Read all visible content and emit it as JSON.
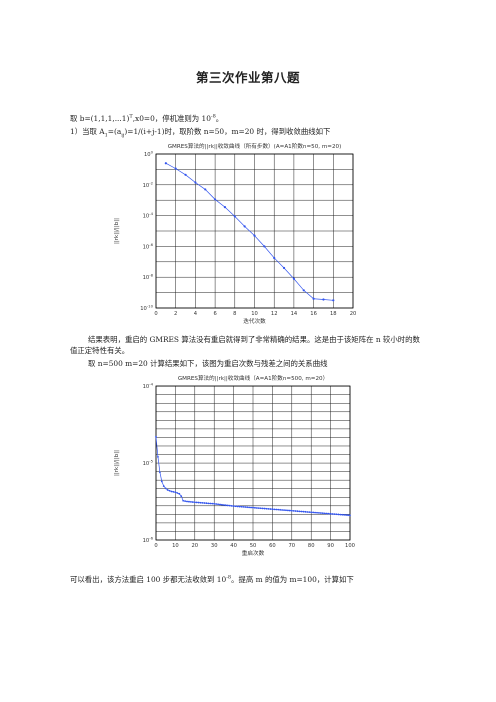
{
  "doc": {
    "title": "第三次作业第八题",
    "line1": "取 b=(1,1,1,...1)T,x0=0，停机准则为 10-8。",
    "line2": "1）当取 A1=(aij)=1/(i+j-1)时，取阶数 n=50，m=20 时，得到收敛曲线如下",
    "para1": "结果表明，重启的 GMRES 算法没有重启就得到了非常精确的结果。这是由于该矩阵在 n 较小时的数值正定特性有关。",
    "line3": "取 n=500 m=20 计算结果如下，该图为重启次数与残差之间的关系曲线",
    "line4": "可以看出，该方法重启 100 步都无法收敛到 10-8。提高 m 的值为 m=100，计算如下"
  },
  "chart_data": [
    {
      "type": "line",
      "title": "GMRES算法的||rk||收敛曲线（所有步数）(A=A1阶数n=50, m=20)",
      "xlabel": "迭代次数",
      "ylabel": "||rk||/||b||",
      "xlim": [
        0,
        20
      ],
      "ylim_log10": [
        -10,
        0
      ],
      "xticks": [
        "0",
        "2",
        "4",
        "6",
        "8",
        "10",
        "12",
        "14",
        "16",
        "18",
        "20"
      ],
      "yticks": [
        "10^0",
        "10^-2",
        "10^-4",
        "10^-6",
        "10^-8",
        "10^-10"
      ],
      "grid": true,
      "series": [
        {
          "x": [
            1,
            2,
            3,
            4,
            5,
            6,
            7,
            8,
            9,
            10,
            11,
            12,
            13,
            14,
            15,
            16,
            17,
            18
          ],
          "y_log10": [
            -0.6,
            -0.95,
            -1.35,
            -1.85,
            -2.3,
            -2.95,
            -3.45,
            -4.05,
            -4.7,
            -5.3,
            -6.0,
            -6.75,
            -7.4,
            -8.1,
            -8.85,
            -9.4,
            -9.45,
            -9.5
          ]
        }
      ]
    },
    {
      "type": "line",
      "title": "GMRES算法的||rk||收敛曲线（A=A1阶数n=500, m=20）",
      "xlabel": "重启次数",
      "ylabel": "||rk||/||b||",
      "xlim": [
        0,
        100
      ],
      "ylim_log10": [
        -6,
        -4
      ],
      "xticks": [
        "0",
        "10",
        "20",
        "30",
        "40",
        "50",
        "60",
        "70",
        "80",
        "90",
        "100"
      ],
      "yticks": [
        "10^-4",
        "10^-5",
        "10^-6"
      ],
      "grid": true,
      "series": [
        {
          "x_start": 0,
          "x_end": 100,
          "key_points": [
            [
              0,
              -4.66
            ],
            [
              1,
              -4.92
            ],
            [
              2,
              -5.12
            ],
            [
              3,
              -5.24
            ],
            [
              4,
              -5.3
            ],
            [
              5,
              -5.33
            ],
            [
              6,
              -5.35
            ],
            [
              8,
              -5.37
            ],
            [
              10,
              -5.38
            ],
            [
              12,
              -5.4
            ],
            [
              13,
              -5.43
            ],
            [
              14,
              -5.49
            ],
            [
              16,
              -5.5
            ],
            [
              20,
              -5.51
            ],
            [
              30,
              -5.53
            ],
            [
              40,
              -5.56
            ],
            [
              50,
              -5.58
            ],
            [
              60,
              -5.6
            ],
            [
              70,
              -5.62
            ],
            [
              80,
              -5.64
            ],
            [
              90,
              -5.66
            ],
            [
              100,
              -5.68
            ]
          ]
        }
      ]
    }
  ]
}
